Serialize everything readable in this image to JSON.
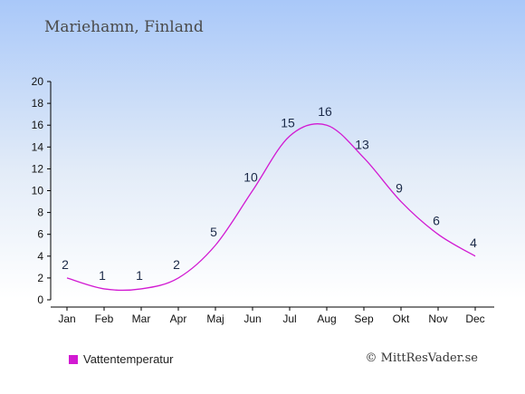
{
  "page": {
    "title": "Mariehamn, Finland",
    "copyright": "© MittResVader.se"
  },
  "chart_data": {
    "type": "line",
    "categories": [
      "Jan",
      "Feb",
      "Mar",
      "Apr",
      "Maj",
      "Jun",
      "Jul",
      "Aug",
      "Sep",
      "Okt",
      "Nov",
      "Dec"
    ],
    "series": [
      {
        "name": "Vattentemperatur",
        "color": "#d21ad2",
        "values": [
          2,
          1,
          1,
          2,
          5,
          10,
          15,
          16,
          13,
          9,
          6,
          4
        ]
      }
    ],
    "ylim": [
      0,
      20
    ],
    "yticks": [
      0,
      2,
      4,
      6,
      8,
      10,
      12,
      14,
      16,
      18,
      20
    ],
    "legend_position": "bottom-left",
    "grid": false
  }
}
